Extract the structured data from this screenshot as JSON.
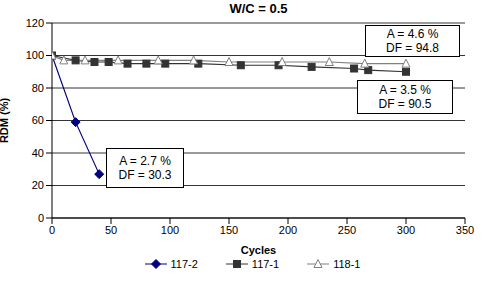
{
  "chart_data": {
    "type": "line",
    "title": "W/C = 0.5",
    "x_label": "Cycles",
    "y_label": "RDM (%)",
    "xlim": [
      0,
      350
    ],
    "xticks": [
      0,
      50,
      100,
      150,
      200,
      250,
      300,
      350
    ],
    "ylim": [
      0,
      120
    ],
    "yticks": [
      0,
      20,
      40,
      60,
      80,
      100,
      120
    ],
    "grid": true,
    "legend": "bottom",
    "series": [
      {
        "name": "117-2",
        "color": "#000080",
        "marker": "diamond",
        "x": [
          0,
          20,
          40
        ],
        "values": [
          100,
          59,
          27
        ]
      },
      {
        "name": "117-1",
        "color": "#333333",
        "marker": "square",
        "x": [
          0,
          20,
          36,
          48,
          64,
          80,
          96,
          124,
          160,
          192,
          220,
          256,
          268,
          300
        ],
        "values": [
          100,
          97,
          96,
          96,
          95,
          95,
          95,
          95,
          94,
          94,
          93,
          92,
          91,
          90
        ]
      },
      {
        "name": "118-1",
        "color": "#808080",
        "marker": "triangle",
        "x": [
          0,
          10,
          28,
          56,
          90,
          120,
          150,
          195,
          235,
          265,
          300
        ],
        "values": [
          100,
          97,
          97,
          97,
          97,
          97,
          96,
          96,
          96,
          95,
          95
        ]
      }
    ],
    "annotations": [
      {
        "series": "118-1",
        "text": [
          "A = 4.6 %",
          "DF = 94.8"
        ]
      },
      {
        "series": "117-1",
        "text": [
          "A = 3.5 %",
          "DF = 90.5"
        ]
      },
      {
        "series": "117-2",
        "text": [
          "A = 2.7 %",
          "DF = 30.3"
        ]
      }
    ]
  }
}
